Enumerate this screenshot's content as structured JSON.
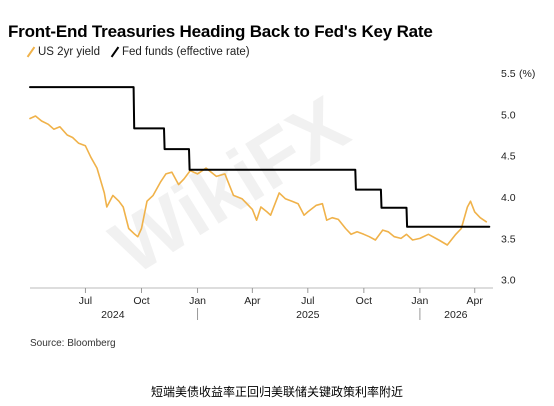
{
  "title": "Front-End Treasuries Heading Back to Fed's Key Rate",
  "source": "Source: Bloomberg",
  "caption": "短端美债收益率正回归美联储关键政策利率附近",
  "watermark": "WikiFX",
  "colors": {
    "yield": "#f0b24a",
    "fed": "#000000",
    "axis": "#cccccc",
    "text": "#222222"
  },
  "chart_data": {
    "type": "line",
    "title": "Front-End Treasuries Heading Back to Fed's Key Rate",
    "xlabel": "",
    "ylabel": "",
    "unit_label": "(%)",
    "ylim": [
      2.9,
      5.5
    ],
    "y_ticks": [
      3.0,
      3.5,
      4.0,
      4.5,
      5.0,
      5.5
    ],
    "y_tick_labels": [
      "3.0",
      "3.5",
      "4.0",
      "4.5",
      "5.0",
      "5.5"
    ],
    "x_range": [
      "2024-04-01",
      "2026-05-01"
    ],
    "x_ticks": [
      {
        "date": "2024-07-01",
        "label": "Jul"
      },
      {
        "date": "2024-10-01",
        "label": "Oct"
      },
      {
        "date": "2025-01-01",
        "label": "Jan"
      },
      {
        "date": "2025-04-01",
        "label": "Apr"
      },
      {
        "date": "2025-07-01",
        "label": "Jul"
      },
      {
        "date": "2025-10-01",
        "label": "Oct"
      },
      {
        "date": "2026-01-01",
        "label": "Jan"
      },
      {
        "date": "2026-04-01",
        "label": "Apr"
      }
    ],
    "year_labels": [
      {
        "date": "2024-08-15",
        "label": "2024"
      },
      {
        "date": "2025-07-01",
        "label": "2025"
      },
      {
        "date": "2026-03-01",
        "label": "2026"
      }
    ],
    "year_separators": [
      "2025-01-01",
      "2026-01-01"
    ],
    "legend_position": "top-left",
    "series": [
      {
        "name": "US 2yr yield",
        "color": "#f0b24a",
        "points": [
          [
            "2024-04-01",
            4.95
          ],
          [
            "2024-04-10",
            4.98
          ],
          [
            "2024-04-20",
            4.92
          ],
          [
            "2024-05-01",
            4.88
          ],
          [
            "2024-05-10",
            4.82
          ],
          [
            "2024-05-20",
            4.85
          ],
          [
            "2024-06-01",
            4.75
          ],
          [
            "2024-06-10",
            4.72
          ],
          [
            "2024-06-20",
            4.65
          ],
          [
            "2024-07-01",
            4.62
          ],
          [
            "2024-07-10",
            4.48
          ],
          [
            "2024-07-20",
            4.35
          ],
          [
            "2024-08-01",
            4.05
          ],
          [
            "2024-08-05",
            3.88
          ],
          [
            "2024-08-15",
            4.02
          ],
          [
            "2024-08-25",
            3.95
          ],
          [
            "2024-09-01",
            3.88
          ],
          [
            "2024-09-10",
            3.62
          ],
          [
            "2024-09-20",
            3.55
          ],
          [
            "2024-09-25",
            3.52
          ],
          [
            "2024-10-01",
            3.62
          ],
          [
            "2024-10-10",
            3.95
          ],
          [
            "2024-10-20",
            4.02
          ],
          [
            "2024-11-01",
            4.18
          ],
          [
            "2024-11-10",
            4.28
          ],
          [
            "2024-11-20",
            4.3
          ],
          [
            "2024-12-01",
            4.15
          ],
          [
            "2024-12-10",
            4.22
          ],
          [
            "2024-12-20",
            4.32
          ],
          [
            "2025-01-01",
            4.28
          ],
          [
            "2025-01-15",
            4.35
          ],
          [
            "2025-02-01",
            4.25
          ],
          [
            "2025-02-15",
            4.28
          ],
          [
            "2025-03-01",
            4.02
          ],
          [
            "2025-03-15",
            3.98
          ],
          [
            "2025-04-01",
            3.85
          ],
          [
            "2025-04-08",
            3.72
          ],
          [
            "2025-04-15",
            3.88
          ],
          [
            "2025-04-25",
            3.82
          ],
          [
            "2025-05-01",
            3.78
          ],
          [
            "2025-05-15",
            4.05
          ],
          [
            "2025-05-25",
            3.98
          ],
          [
            "2025-06-05",
            3.95
          ],
          [
            "2025-06-15",
            3.92
          ],
          [
            "2025-06-25",
            3.78
          ],
          [
            "2025-07-01",
            3.82
          ],
          [
            "2025-07-15",
            3.9
          ],
          [
            "2025-07-25",
            3.92
          ],
          [
            "2025-08-01",
            3.72
          ],
          [
            "2025-08-10",
            3.75
          ],
          [
            "2025-08-20",
            3.73
          ],
          [
            "2025-09-01",
            3.62
          ],
          [
            "2025-09-10",
            3.55
          ],
          [
            "2025-09-20",
            3.58
          ],
          [
            "2025-10-01",
            3.55
          ],
          [
            "2025-10-10",
            3.52
          ],
          [
            "2025-10-20",
            3.48
          ],
          [
            "2025-11-01",
            3.6
          ],
          [
            "2025-11-10",
            3.58
          ],
          [
            "2025-11-20",
            3.52
          ],
          [
            "2025-12-01",
            3.5
          ],
          [
            "2025-12-10",
            3.55
          ],
          [
            "2025-12-20",
            3.48
          ],
          [
            "2026-01-01",
            3.5
          ],
          [
            "2026-01-15",
            3.55
          ],
          [
            "2026-02-01",
            3.48
          ],
          [
            "2026-02-15",
            3.42
          ],
          [
            "2026-03-01",
            3.55
          ],
          [
            "2026-03-10",
            3.62
          ],
          [
            "2026-03-20",
            3.88
          ],
          [
            "2026-03-25",
            3.95
          ],
          [
            "2026-04-01",
            3.82
          ],
          [
            "2026-04-10",
            3.75
          ],
          [
            "2026-04-20",
            3.7
          ]
        ]
      },
      {
        "name": "Fed funds (effective rate)",
        "color": "#000000",
        "step": true,
        "points": [
          [
            "2024-04-01",
            5.33
          ],
          [
            "2024-09-18",
            5.33
          ],
          [
            "2024-09-19",
            4.83
          ],
          [
            "2024-11-07",
            4.83
          ],
          [
            "2024-11-08",
            4.58
          ],
          [
            "2024-12-18",
            4.58
          ],
          [
            "2024-12-19",
            4.33
          ],
          [
            "2025-09-17",
            4.33
          ],
          [
            "2025-09-18",
            4.09
          ],
          [
            "2025-10-29",
            4.09
          ],
          [
            "2025-10-30",
            3.87
          ],
          [
            "2025-12-10",
            3.87
          ],
          [
            "2025-12-11",
            3.64
          ],
          [
            "2026-04-25",
            3.64
          ]
        ]
      }
    ]
  }
}
